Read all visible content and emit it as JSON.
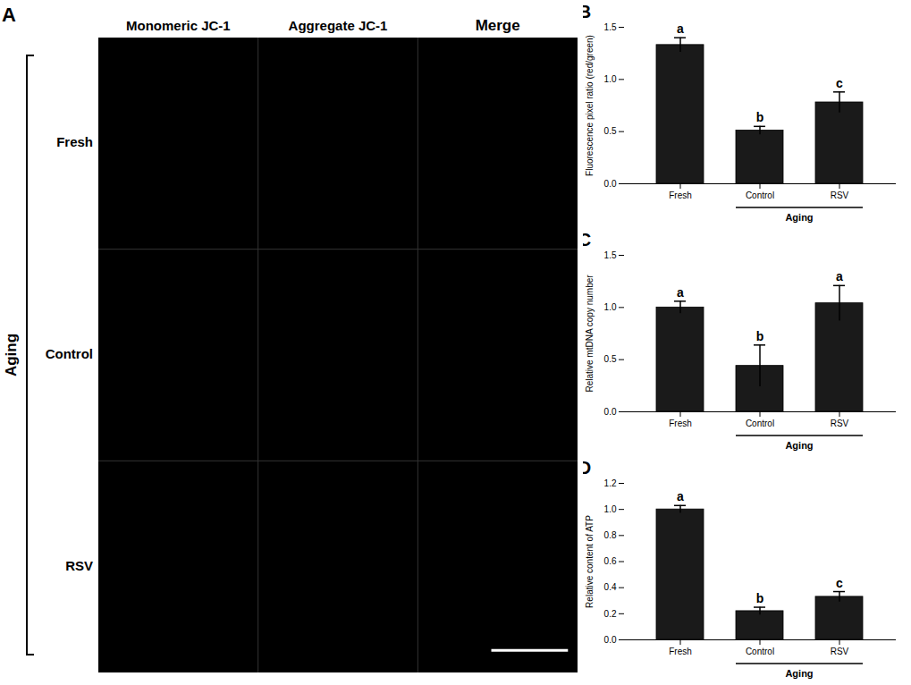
{
  "chart_data": [
    {
      "type": "image",
      "title": "A",
      "x": [
        "Monomeric JC-1",
        "Aggregate JC-1",
        "Merge"
      ],
      "categories": [
        "Fresh",
        "Control",
        "RSV"
      ],
      "ylabel": "Aging",
      "color": "#000000"
    },
    {
      "type": "bar",
      "title": "B",
      "categories": [
        "Fresh",
        "Control",
        "RSV"
      ],
      "values": [
        1.33,
        0.51,
        0.78
      ],
      "errors": [
        0.07,
        0.04,
        0.1
      ],
      "letters": [
        "a",
        "b",
        "c"
      ],
      "ylabel": "Fluorescence pixel ratio (red/green)",
      "ylim": [
        0,
        1.5
      ],
      "yticks": [
        {
          "value": 0.0,
          "label": "0.0"
        },
        0.5,
        {
          "value": 1.0,
          "label": "1.0"
        },
        1.5
      ],
      "color": "#1a1a1a",
      "annotations": [
        {
          "text": "Aging",
          "from": "Control",
          "to": "RSV"
        }
      ]
    },
    {
      "type": "bar",
      "title": "C",
      "categories": [
        "Fresh",
        "Control",
        "RSV"
      ],
      "values": [
        1.0,
        0.44,
        1.04
      ],
      "errors": [
        0.06,
        0.2,
        0.17
      ],
      "letters": [
        "a",
        "b",
        "a"
      ],
      "ylabel": "Relative mtDNA copy number",
      "ylim": [
        0,
        1.5
      ],
      "yticks": [
        {
          "value": 0.0,
          "label": "0.0"
        },
        0.5,
        {
          "value": 1.0,
          "label": "1.0"
        },
        1.5
      ],
      "color": "#1a1a1a",
      "annotations": [
        {
          "text": "Aging",
          "from": "Control",
          "to": "RSV"
        }
      ]
    },
    {
      "type": "bar",
      "title": "D",
      "categories": [
        "Fresh",
        "Control",
        "RSV"
      ],
      "values": [
        1.0,
        0.22,
        0.33
      ],
      "errors": [
        0.03,
        0.03,
        0.04
      ],
      "letters": [
        "a",
        "b",
        "c"
      ],
      "ylabel": "Relative content of ATP",
      "ylim": [
        0,
        1.2
      ],
      "yticks": [
        {
          "value": 0.0,
          "label": "0.0"
        },
        0.2,
        0.4,
        0.6,
        0.8,
        {
          "value": 1.0,
          "label": "1.0"
        },
        1.2
      ],
      "color": "#1a1a1a",
      "annotations": [
        {
          "text": "Aging",
          "from": "Control",
          "to": "RSV"
        }
      ]
    }
  ]
}
